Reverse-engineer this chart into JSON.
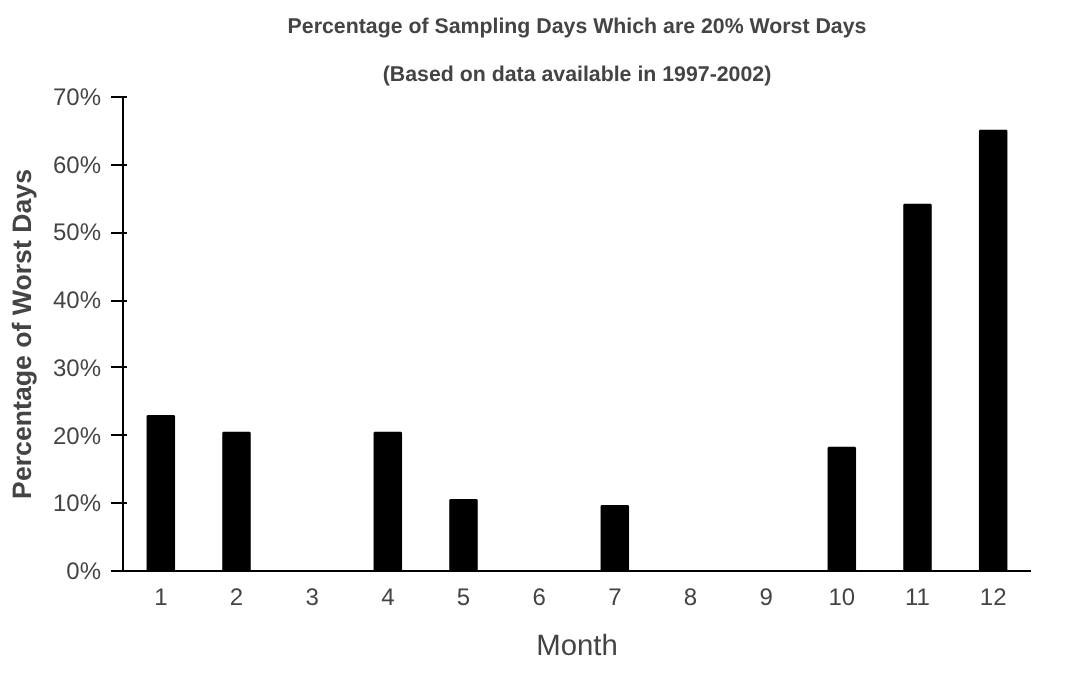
{
  "chart_data": {
    "type": "bar",
    "title": "Percentage of Sampling Days Which are 20% Worst Days",
    "subtitle": "(Based on data available in 1997-2002)",
    "xlabel": "Month",
    "ylabel": "Percentage of Worst Days",
    "categories": [
      "1",
      "2",
      "3",
      "4",
      "5",
      "6",
      "7",
      "8",
      "9",
      "10",
      "11",
      "12"
    ],
    "values": [
      22.9,
      20.4,
      0,
      20.4,
      10.5,
      0,
      9.6,
      0,
      0,
      18.2,
      54.1,
      65.0
    ],
    "color": "#000000",
    "ylim": [
      0,
      70
    ],
    "yticks": [
      {
        "value": 0,
        "label": "0%"
      },
      {
        "value": 10,
        "label": "10%"
      },
      {
        "value": 20,
        "label": "20%"
      },
      {
        "value": 30,
        "label": "30%"
      },
      {
        "value": 40,
        "label": "40%"
      },
      {
        "value": 50,
        "label": "50%"
      },
      {
        "value": 60,
        "label": "60%"
      },
      {
        "value": 70,
        "label": "70%"
      }
    ],
    "grid": false
  }
}
